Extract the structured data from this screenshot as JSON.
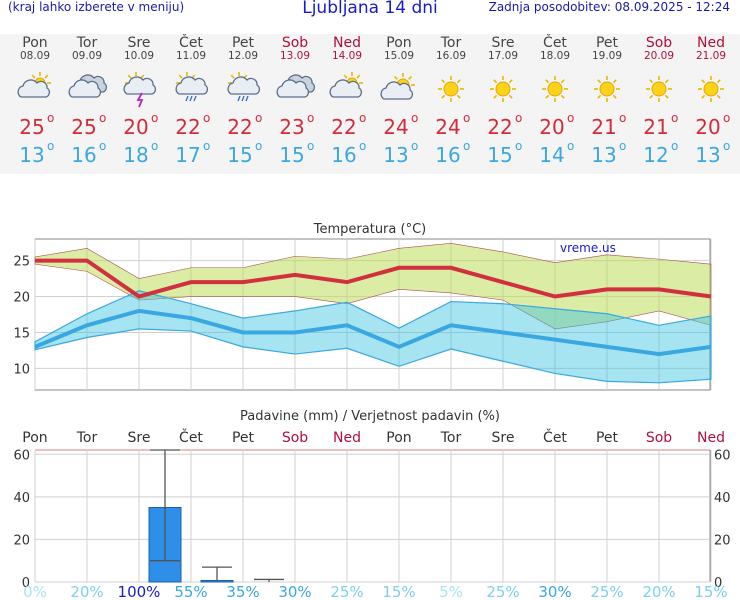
{
  "header": {
    "menu_hint": "(kraj lahko izberete v meniju)",
    "title": "Ljubljana 14 dni",
    "updated": "Zadnja posodobitev: 08.09.2025 - 12:24"
  },
  "days": [
    {
      "name": "Pon",
      "date": "08.09",
      "weekend": false,
      "icon": "partly-cloudy-icon",
      "tmax": "25",
      "tmin": "13"
    },
    {
      "name": "Tor",
      "date": "09.09",
      "weekend": false,
      "icon": "cloudy-icon",
      "tmax": "25",
      "tmin": "16"
    },
    {
      "name": "Sre",
      "date": "10.09",
      "weekend": false,
      "icon": "thunderstorm-icon",
      "tmax": "20",
      "tmin": "18"
    },
    {
      "name": "Čet",
      "date": "11.09",
      "weekend": false,
      "icon": "sun-rain-icon",
      "tmax": "22",
      "tmin": "17"
    },
    {
      "name": "Pet",
      "date": "12.09",
      "weekend": false,
      "icon": "sun-rain-icon",
      "tmax": "22",
      "tmin": "15"
    },
    {
      "name": "Sob",
      "date": "13.09",
      "weekend": true,
      "icon": "cloudy-icon",
      "tmax": "23",
      "tmin": "15"
    },
    {
      "name": "Ned",
      "date": "14.09",
      "weekend": true,
      "icon": "partly-cloudy-icon",
      "tmax": "22",
      "tmin": "16"
    },
    {
      "name": "Pon",
      "date": "15.09",
      "weekend": false,
      "icon": "sun-cloud-icon",
      "tmax": "24",
      "tmin": "13"
    },
    {
      "name": "Tor",
      "date": "16.09",
      "weekend": false,
      "icon": "sun-icon",
      "tmax": "24",
      "tmin": "16"
    },
    {
      "name": "Sre",
      "date": "17.09",
      "weekend": false,
      "icon": "sun-icon",
      "tmax": "22",
      "tmin": "15"
    },
    {
      "name": "Čet",
      "date": "18.09",
      "weekend": false,
      "icon": "sun-icon",
      "tmax": "20",
      "tmin": "14"
    },
    {
      "name": "Pet",
      "date": "19.09",
      "weekend": false,
      "icon": "sun-icon",
      "tmax": "21",
      "tmin": "13"
    },
    {
      "name": "Sob",
      "date": "20.09",
      "weekend": true,
      "icon": "sun-icon",
      "tmax": "21",
      "tmin": "12"
    },
    {
      "name": "Ned",
      "date": "21.09",
      "weekend": true,
      "icon": "sun-icon",
      "tmax": "20",
      "tmin": "13"
    }
  ],
  "colors": {
    "tmax": "#d42a3c",
    "tmin": "#3aa8e0",
    "weekend": "#b0103a",
    "weekday": "#444444"
  },
  "chart_data": [
    {
      "type": "line",
      "title": "Temperatura (°C)",
      "watermark": "vreme.us",
      "x": [
        "Pon",
        "Tor",
        "Sre",
        "Čet",
        "Pet",
        "Sob",
        "Ned",
        "Pon",
        "Tor",
        "Sre",
        "Čet",
        "Pet",
        "Sob",
        "Ned"
      ],
      "ylim": [
        7,
        28
      ],
      "yticks": [
        10,
        15,
        20,
        25
      ],
      "grid": true,
      "series": [
        {
          "name": "max",
          "values": [
            25,
            25,
            20,
            22,
            22,
            23,
            22,
            24,
            24,
            22,
            20,
            21,
            21,
            20
          ]
        },
        {
          "name": "min",
          "values": [
            13,
            16,
            18,
            17,
            15,
            15,
            16,
            13,
            16,
            15,
            14,
            13,
            12,
            13
          ]
        }
      ],
      "max_band_upper": [
        25.5,
        26.7,
        22.5,
        24,
        24,
        25.6,
        25.2,
        26.7,
        27.4,
        26.2,
        24.7,
        25.8,
        25.2,
        24.5
      ],
      "max_band_lower": [
        24.5,
        23.5,
        19.5,
        20,
        20,
        20,
        19,
        21,
        20.5,
        19.5,
        15.5,
        16.5,
        18,
        16
      ],
      "min_band_upper": [
        13.7,
        17.6,
        20.8,
        19,
        17,
        18,
        19.2,
        15.6,
        19.3,
        19,
        18.3,
        17.6,
        16,
        17.3
      ],
      "min_band_lower": [
        12.6,
        14.3,
        15.5,
        15.2,
        13,
        12,
        12.8,
        10.3,
        12.7,
        11,
        9.3,
        8.2,
        8,
        8.5
      ]
    },
    {
      "type": "bar",
      "title": "Padavine (mm) / Verjetnost padavin (%)",
      "categories": [
        "Pon",
        "Tor",
        "Sre",
        "Čet",
        "Pet",
        "Sob",
        "Ned",
        "Pon",
        "Tor",
        "Sre",
        "Čet",
        "Pet",
        "Sob",
        "Ned"
      ],
      "values": [
        0,
        0,
        35,
        0.7,
        0,
        0,
        0,
        0,
        0,
        0,
        0,
        0,
        0,
        0
      ],
      "error_high": [
        0,
        0,
        62,
        7,
        1.2,
        0,
        0,
        0,
        0,
        0,
        0,
        0,
        0,
        0
      ],
      "error_low": [
        0,
        0,
        10,
        0,
        0,
        0,
        0,
        0,
        0,
        0,
        0,
        0,
        0,
        0
      ],
      "probability": [
        "0%",
        "20%",
        "100%",
        "55%",
        "35%",
        "30%",
        "25%",
        "15%",
        "5%",
        "25%",
        "30%",
        "25%",
        "20%",
        "15%"
      ],
      "probability_values": [
        0,
        20,
        100,
        55,
        35,
        30,
        25,
        15,
        5,
        25,
        30,
        25,
        20,
        15
      ],
      "ylim": [
        0,
        62
      ],
      "yticks": [
        0,
        20,
        40,
        60
      ]
    }
  ]
}
